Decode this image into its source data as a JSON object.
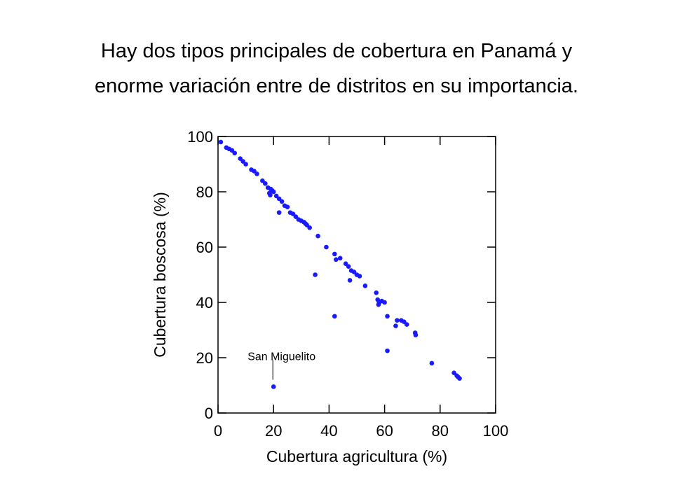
{
  "slide": {
    "title_line1": "Hay dos tipos principales de cobertura en Panamá y",
    "title_line2": "enorme variación entre de distritos en su importancia."
  },
  "chart_data": {
    "type": "scatter",
    "title": "",
    "xlabel": "Cubertura agricultura (%)",
    "ylabel": "Cubertura boscosa (%)",
    "xlim": [
      0,
      100
    ],
    "ylim": [
      0,
      100
    ],
    "xticks": [
      0,
      20,
      40,
      60,
      80,
      100
    ],
    "yticks": [
      0,
      20,
      40,
      60,
      80,
      100
    ],
    "grid": false,
    "marker_color": "#1a1aff",
    "points": [
      [
        1,
        98
      ],
      [
        3,
        96
      ],
      [
        4,
        95.5
      ],
      [
        5,
        95
      ],
      [
        6,
        94
      ],
      [
        8,
        92
      ],
      [
        9,
        91
      ],
      [
        10,
        90
      ],
      [
        12,
        88
      ],
      [
        13,
        87.5
      ],
      [
        14,
        86.5
      ],
      [
        16,
        84
      ],
      [
        17,
        83
      ],
      [
        18,
        81.5
      ],
      [
        19,
        81
      ],
      [
        19.5,
        80.5
      ],
      [
        18.5,
        79.5
      ],
      [
        18.8,
        78.8
      ],
      [
        20,
        80
      ],
      [
        21,
        78.5
      ],
      [
        22,
        77.5
      ],
      [
        23,
        76.5
      ],
      [
        22,
        72.5
      ],
      [
        24,
        75
      ],
      [
        25,
        74.5
      ],
      [
        26,
        72.5
      ],
      [
        27,
        72
      ],
      [
        28,
        71
      ],
      [
        29,
        70
      ],
      [
        30,
        69.5
      ],
      [
        31,
        69
      ],
      [
        31.5,
        68.5
      ],
      [
        32,
        68
      ],
      [
        33,
        67
      ],
      [
        35,
        50
      ],
      [
        36,
        64
      ],
      [
        39,
        60
      ],
      [
        42,
        57.5
      ],
      [
        42.5,
        55.5
      ],
      [
        44,
        56
      ],
      [
        42,
        35
      ],
      [
        46,
        54
      ],
      [
        47,
        53
      ],
      [
        48,
        51.5
      ],
      [
        49,
        51
      ],
      [
        50,
        50
      ],
      [
        51,
        49.5
      ],
      [
        47.5,
        48
      ],
      [
        53,
        46
      ],
      [
        57,
        43.5
      ],
      [
        57.5,
        41
      ],
      [
        58,
        40
      ],
      [
        59,
        40.5
      ],
      [
        60,
        40
      ],
      [
        57.8,
        39.2
      ],
      [
        61,
        35
      ],
      [
        64,
        31.5
      ],
      [
        64.5,
        33.5
      ],
      [
        66,
        33.5
      ],
      [
        67,
        33
      ],
      [
        68,
        32
      ],
      [
        71,
        29
      ],
      [
        71.2,
        28.2
      ],
      [
        61,
        22.5
      ],
      [
        77,
        18
      ],
      [
        85,
        14.5
      ],
      [
        86,
        13.5
      ],
      [
        86.5,
        13
      ],
      [
        87,
        12.5
      ],
      [
        20,
        9.5
      ]
    ],
    "annotations": [
      {
        "text": "San Miguelito",
        "x": 20,
        "y": 9.5
      }
    ]
  }
}
